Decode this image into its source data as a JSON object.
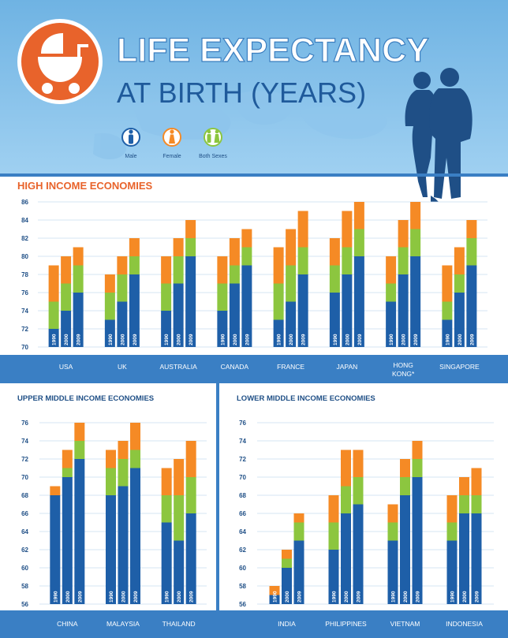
{
  "header": {
    "title_line1": "LIFE EXPECTANCY",
    "title_line2": "AT BIRTH (YEARS)",
    "legend": [
      {
        "label": "Male",
        "color": "#1e5fa8",
        "icon": "male-icon"
      },
      {
        "label": "Female",
        "color": "#f58a25",
        "icon": "female-icon"
      },
      {
        "label": "Both Sexes",
        "color": "#8cc63f",
        "icon": "both-sexes-icon"
      }
    ]
  },
  "chart_data": [
    {
      "type": "bar",
      "title": "HIGH INCOME ECONOMIES",
      "ylim": [
        70,
        86
      ],
      "yticks": [
        70,
        72,
        74,
        76,
        78,
        80,
        82,
        84,
        86
      ],
      "year_labels": [
        "1990",
        "2000",
        "2009"
      ],
      "series": [
        {
          "name": "Male",
          "color": "#1e5fa8"
        },
        {
          "name": "Both Sexes",
          "color": "#8cc63f"
        },
        {
          "name": "Female",
          "color": "#f58a25"
        }
      ],
      "groups": [
        {
          "label": "USA",
          "bars": [
            {
              "male": 72,
              "both": 75,
              "female": 79
            },
            {
              "male": 74,
              "both": 77,
              "female": 80
            },
            {
              "male": 76,
              "both": 79,
              "female": 81
            }
          ]
        },
        {
          "label": "UK",
          "bars": [
            {
              "male": 73,
              "both": 76,
              "female": 78
            },
            {
              "male": 75,
              "both": 78,
              "female": 80
            },
            {
              "male": 78,
              "both": 80,
              "female": 82
            }
          ]
        },
        {
          "label": "AUSTRALIA",
          "bars": [
            {
              "male": 74,
              "both": 77,
              "female": 80
            },
            {
              "male": 77,
              "both": 80,
              "female": 82
            },
            {
              "male": 80,
              "both": 82,
              "female": 84
            }
          ]
        },
        {
          "label": "CANADA",
          "bars": [
            {
              "male": 74,
              "both": 77,
              "female": 80
            },
            {
              "male": 77,
              "both": 79,
              "female": 82
            },
            {
              "male": 79,
              "both": 81,
              "female": 83
            }
          ]
        },
        {
          "label": "FRANCE",
          "bars": [
            {
              "male": 73,
              "both": 77,
              "female": 81
            },
            {
              "male": 75,
              "both": 79,
              "female": 83
            },
            {
              "male": 78,
              "both": 81,
              "female": 85
            }
          ]
        },
        {
          "label": "JAPAN",
          "bars": [
            {
              "male": 76,
              "both": 79,
              "female": 82
            },
            {
              "male": 78,
              "both": 81,
              "female": 85
            },
            {
              "male": 80,
              "both": 83,
              "female": 86
            }
          ]
        },
        {
          "label": "HONG KONG*",
          "bars": [
            {
              "male": 75,
              "both": 77,
              "female": 80
            },
            {
              "male": 78,
              "both": 81,
              "female": 84
            },
            {
              "male": 80,
              "both": 83,
              "female": 86
            }
          ]
        },
        {
          "label": "SINGAPORE",
          "bars": [
            {
              "male": 73,
              "both": 75,
              "female": 79
            },
            {
              "male": 76,
              "both": 78,
              "female": 81
            },
            {
              "male": 79,
              "both": 82,
              "female": 84
            }
          ]
        }
      ]
    },
    {
      "type": "bar",
      "title": "UPPER MIDDLE INCOME ECONOMIES",
      "ylim": [
        56,
        76
      ],
      "yticks": [
        56,
        58,
        60,
        62,
        64,
        66,
        68,
        70,
        72,
        74,
        76
      ],
      "year_labels": [
        "1990",
        "2000",
        "2009"
      ],
      "series": [
        {
          "name": "Male",
          "color": "#1e5fa8"
        },
        {
          "name": "Both Sexes",
          "color": "#8cc63f"
        },
        {
          "name": "Female",
          "color": "#f58a25"
        }
      ],
      "groups": [
        {
          "label": "CHINA",
          "bars": [
            {
              "male": 68,
              "both": 68,
              "female": 69
            },
            {
              "male": 70,
              "both": 71,
              "female": 73
            },
            {
              "male": 72,
              "both": 74,
              "female": 76
            }
          ]
        },
        {
          "label": "MALAYSIA",
          "bars": [
            {
              "male": 68,
              "both": 71,
              "female": 73
            },
            {
              "male": 69,
              "both": 72,
              "female": 74
            },
            {
              "male": 71,
              "both": 73,
              "female": 76
            }
          ]
        },
        {
          "label": "THAILAND",
          "bars": [
            {
              "male": 65,
              "both": 68,
              "female": 71
            },
            {
              "male": 63,
              "both": 68,
              "female": 72
            },
            {
              "male": 66,
              "both": 70,
              "female": 74
            }
          ]
        }
      ]
    },
    {
      "type": "bar",
      "title": "LOWER MIDDLE INCOME ECONOMIES",
      "ylim": [
        56,
        76
      ],
      "yticks": [
        56,
        58,
        60,
        62,
        64,
        66,
        68,
        70,
        72,
        74,
        76
      ],
      "year_labels": [
        "1990",
        "2000",
        "2009"
      ],
      "series": [
        {
          "name": "Male",
          "color": "#1e5fa8"
        },
        {
          "name": "Both Sexes",
          "color": "#8cc63f"
        },
        {
          "name": "Female",
          "color": "#f58a25"
        }
      ],
      "groups": [
        {
          "label": "INDIA",
          "bars": [
            {
              "male": 57,
              "both": 57,
              "female": 58
            },
            {
              "male": 60,
              "both": 61,
              "female": 62
            },
            {
              "male": 63,
              "both": 65,
              "female": 66
            }
          ]
        },
        {
          "label": "PHILIPPINES",
          "bars": [
            {
              "male": 62,
              "both": 65,
              "female": 68
            },
            {
              "male": 66,
              "both": 69,
              "female": 73
            },
            {
              "male": 67,
              "both": 70,
              "female": 73
            }
          ]
        },
        {
          "label": "VIETNAM",
          "bars": [
            {
              "male": 63,
              "both": 65,
              "female": 67
            },
            {
              "male": 68,
              "both": 70,
              "female": 72
            },
            {
              "male": 70,
              "both": 72,
              "female": 74
            }
          ]
        },
        {
          "label": "INDONESIA",
          "bars": [
            {
              "male": 63,
              "both": 65,
              "female": 68
            },
            {
              "male": 66,
              "both": 68,
              "female": 70
            },
            {
              "male": 66,
              "both": 68,
              "female": 71
            }
          ]
        }
      ]
    }
  ]
}
